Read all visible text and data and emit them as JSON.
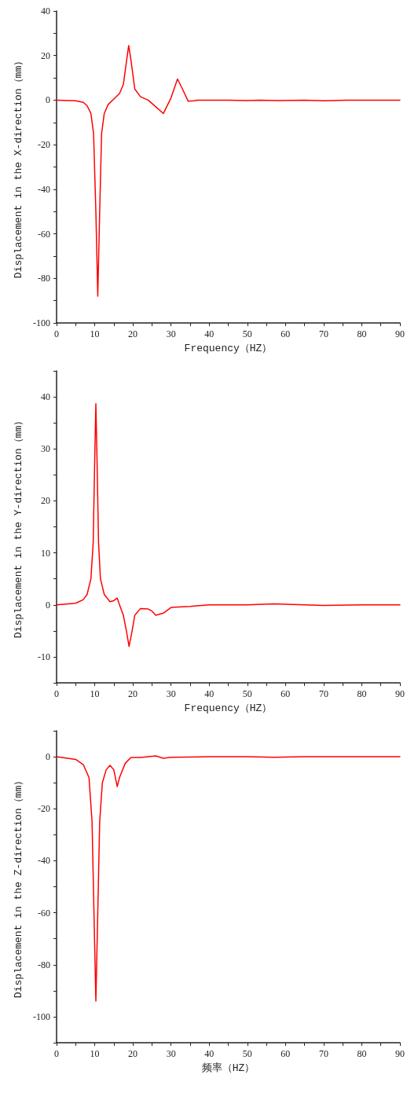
{
  "chart_data": [
    {
      "type": "line",
      "xlabel": "Frequency（HZ）",
      "ylabel": "Displacement in the X-direction（mm）",
      "xlim": [
        0,
        90
      ],
      "ylim": [
        -100,
        40
      ],
      "xticks": [
        0,
        {
          "value": 5,
          "label": null
        },
        10,
        {
          "value": 15,
          "label": null
        },
        20,
        {
          "value": 25,
          "label": null
        },
        30,
        {
          "value": 35,
          "label": null
        },
        40,
        {
          "value": 45,
          "label": null
        },
        50,
        {
          "value": 55,
          "label": null
        },
        60,
        {
          "value": 65,
          "label": null
        },
        70,
        {
          "value": 75,
          "label": null
        },
        80,
        {
          "value": 85,
          "label": null
        },
        90
      ],
      "yticks": [
        -100,
        {
          "value": -90,
          "label": null
        },
        -80,
        {
          "value": -70,
          "label": null
        },
        -60,
        {
          "value": -50,
          "label": null
        },
        -40,
        {
          "value": -30,
          "label": null
        },
        -20,
        {
          "value": -10,
          "label": null
        },
        0,
        {
          "value": 10,
          "label": null
        },
        20,
        {
          "value": 30,
          "label": null
        },
        40
      ],
      "grid": false,
      "marker": "none",
      "line_style": "solid",
      "series": [
        {
          "color": "#ff0000",
          "x": [
            0,
            5,
            7,
            8,
            9,
            9.7,
            10.3,
            10.8,
            11.3,
            11.8,
            12.5,
            13.5,
            15,
            16.5,
            17.5,
            18.3,
            18.9,
            19.5,
            20.5,
            22,
            24,
            26,
            28,
            30,
            31.7,
            33,
            34.5,
            36,
            37,
            45,
            50,
            53,
            58,
            65,
            70,
            76,
            85,
            90
          ],
          "values": [
            0,
            -0.3,
            -1,
            -2.5,
            -6,
            -15,
            -50,
            -88,
            -50,
            -15,
            -6,
            -2,
            0.5,
            3,
            7,
            17,
            24.5,
            18,
            5,
            1.5,
            0,
            -3,
            -6,
            1,
            9.5,
            5,
            -0.5,
            -0.3,
            0,
            0,
            -0.2,
            0,
            -0.2,
            0,
            -0.3,
            0,
            0,
            0
          ]
        }
      ]
    },
    {
      "type": "line",
      "xlabel": "Frequency（HZ）",
      "ylabel": "Displacement in the Y-direction（mm）",
      "xlim": [
        0,
        90
      ],
      "ylim": [
        -15,
        45
      ],
      "xticks": [
        0,
        {
          "value": 5,
          "label": null
        },
        10,
        {
          "value": 15,
          "label": null
        },
        20,
        {
          "value": 25,
          "label": null
        },
        30,
        {
          "value": 35,
          "label": null
        },
        40,
        {
          "value": 45,
          "label": null
        },
        50,
        {
          "value": 55,
          "label": null
        },
        60,
        {
          "value": 65,
          "label": null
        },
        70,
        {
          "value": 75,
          "label": null
        },
        80,
        {
          "value": 85,
          "label": null
        },
        90
      ],
      "yticks": [
        {
          "value": -15,
          "label": null
        },
        -10,
        {
          "value": -5,
          "label": null
        },
        0,
        {
          "value": 5,
          "label": null
        },
        10,
        {
          "value": 15,
          "label": null
        },
        20,
        {
          "value": 25,
          "label": null
        },
        30,
        {
          "value": 35,
          "label": null
        },
        40,
        {
          "value": 45,
          "label": null
        }
      ],
      "grid": false,
      "marker": "none",
      "line_style": "solid",
      "series": [
        {
          "color": "#ff0000",
          "x": [
            0,
            5,
            7,
            8,
            9,
            9.6,
            10,
            10.3,
            10.6,
            11,
            11.5,
            12.5,
            14,
            15,
            15.9,
            16.5,
            17.5,
            18.3,
            19,
            19.8,
            20.5,
            22,
            24,
            25,
            26,
            28,
            30,
            35,
            40,
            50,
            57,
            65,
            70,
            80,
            90
          ],
          "values": [
            0,
            0.3,
            1,
            2,
            5,
            12,
            28,
            38.7,
            28,
            12,
            5,
            2,
            0.6,
            0.8,
            1.3,
            0,
            -2,
            -5,
            -8,
            -5,
            -2,
            -0.7,
            -0.8,
            -1.2,
            -2,
            -1.6,
            -0.5,
            -0.3,
            0,
            0,
            0.2,
            0,
            -0.1,
            0,
            0
          ]
        }
      ]
    },
    {
      "type": "line",
      "xlabel": "频率（HZ）",
      "ylabel": "Displacement in the Z-direction（mm）",
      "xlim": [
        0,
        90
      ],
      "ylim": [
        -110,
        10
      ],
      "xticks": [
        0,
        {
          "value": 5,
          "label": null
        },
        10,
        {
          "value": 15,
          "label": null
        },
        20,
        {
          "value": 25,
          "label": null
        },
        30,
        {
          "value": 35,
          "label": null
        },
        40,
        {
          "value": 45,
          "label": null
        },
        50,
        {
          "value": 55,
          "label": null
        },
        60,
        {
          "value": 65,
          "label": null
        },
        70,
        {
          "value": 75,
          "label": null
        },
        80,
        {
          "value": 85,
          "label": null
        },
        90
      ],
      "yticks": [
        {
          "value": -110,
          "label": null
        },
        -100,
        {
          "value": -90,
          "label": null
        },
        -80,
        {
          "value": -70,
          "label": null
        },
        -60,
        {
          "value": -50,
          "label": null
        },
        -40,
        {
          "value": -30,
          "label": null
        },
        -20,
        {
          "value": -10,
          "label": null
        },
        0,
        {
          "value": 10,
          "label": null
        }
      ],
      "grid": false,
      "marker": "none",
      "line_style": "solid",
      "series": [
        {
          "color": "#ff0000",
          "x": [
            0,
            5,
            7,
            8.5,
            9.3,
            9.8,
            10.3,
            10.8,
            11.3,
            12,
            13,
            14,
            15,
            15.9,
            16.5,
            18,
            19.5,
            22,
            26,
            28,
            30,
            40,
            50,
            57,
            65,
            90
          ],
          "values": [
            0,
            -1,
            -3,
            -8,
            -25,
            -60,
            -94,
            -60,
            -25,
            -10,
            -5,
            -3.3,
            -5,
            -11.5,
            -8,
            -2.5,
            -0.3,
            -0.3,
            0.3,
            -0.6,
            -0.2,
            0,
            0,
            -0.2,
            0,
            0
          ]
        }
      ]
    }
  ]
}
